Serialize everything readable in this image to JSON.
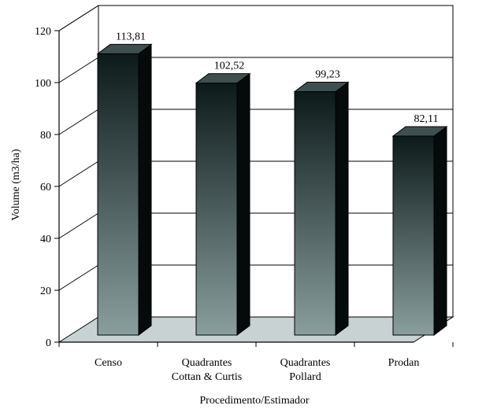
{
  "chart_data": {
    "type": "bar",
    "style": "3d",
    "categories": [
      [
        "Censo"
      ],
      [
        "Quadrantes",
        "Cottan & Curtis"
      ],
      [
        "Quadrantes",
        "Pollard"
      ],
      [
        "Prodan"
      ]
    ],
    "values": [
      113.81,
      102.52,
      99.23,
      82.11
    ],
    "data_labels": [
      "113,81",
      "102,52",
      "99,23",
      "82,11"
    ],
    "xlabel": "Procedimento/Estimador",
    "ylabel": "Volume (m3/ha)",
    "ylim": [
      0,
      120
    ],
    "yticks": [
      0,
      20,
      40,
      60,
      80,
      100,
      120
    ],
    "grid": true,
    "legend": "none",
    "colors": {
      "bar_top": "#0d1a1a",
      "bar_bottom": "#8a9e9e",
      "bar_side": "#050a0a",
      "bar_cap": "#3f4f4f",
      "floor": "#c8d2d2",
      "grid": "#000000"
    }
  }
}
